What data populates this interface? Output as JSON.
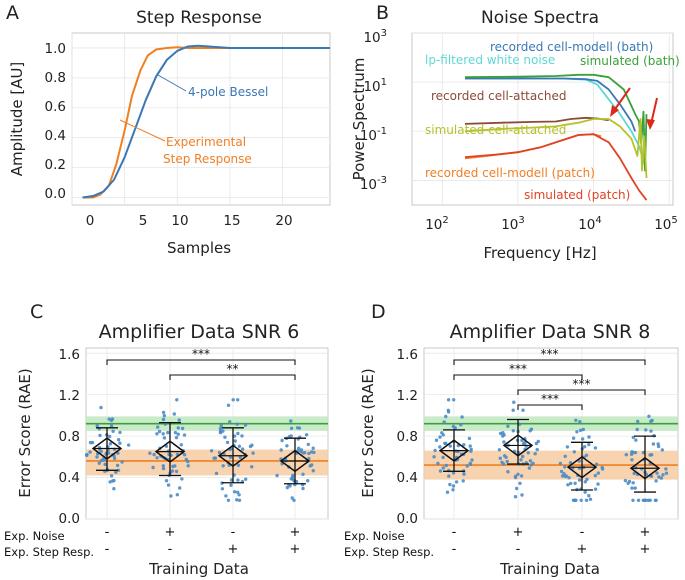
{
  "figure": {
    "colors": {
      "blue": "#3a78b5",
      "orange": "#f07f22",
      "green": "#3aa03a",
      "cyan": "#5fd8d4",
      "olive": "#b6c22a",
      "brown": "#8c4a3a",
      "red": "#e04325",
      "dot": "#4a8cc8",
      "green_band": "#bfe7bf",
      "orange_band": "#f6cba2"
    }
  },
  "chart_data": [
    {
      "panel": "A",
      "type": "line",
      "title": "Step Response",
      "xlabel": "Samples",
      "ylabel": "Amplitude [AU]",
      "xlim": [
        0,
        24.5
      ],
      "ylim": [
        -0.05,
        1.1
      ],
      "xticks": [
        "0",
        "5",
        "10",
        "15",
        "20"
      ],
      "yticks": [
        "0.0",
        "0.2",
        "0.4",
        "0.6",
        "0.8",
        "1.0"
      ],
      "annotations": [
        "4-pole Bessel",
        "Experimental",
        "Step Response"
      ],
      "series": [
        {
          "name": "4-pole Bessel",
          "color": "blue",
          "x": [
            1,
            2,
            3,
            4,
            5,
            6,
            7,
            8,
            9,
            10,
            11,
            12,
            13,
            14,
            15,
            16,
            17,
            18,
            19,
            20,
            21,
            22,
            23,
            24.5
          ],
          "y": [
            0.0,
            0.01,
            0.04,
            0.12,
            0.27,
            0.46,
            0.65,
            0.81,
            0.92,
            0.98,
            1.01,
            1.015,
            1.01,
            1.005,
            1.0,
            1.0,
            1.0,
            1.0,
            1.0,
            1.0,
            1.0,
            1.0,
            1.0,
            1.0
          ]
        },
        {
          "name": "Experimental Step Response",
          "color": "orange",
          "x": [
            1,
            2,
            2.7,
            3.5,
            4.2,
            5,
            5.7,
            6.5,
            7.2,
            8,
            9,
            10,
            11,
            12,
            13,
            15,
            24.5
          ],
          "y": [
            0.0,
            0.0,
            0.02,
            0.08,
            0.22,
            0.45,
            0.68,
            0.85,
            0.95,
            0.99,
            1.0,
            1.005,
            1.0,
            1.0,
            1.0,
            1.0,
            1.0
          ]
        }
      ]
    },
    {
      "panel": "B",
      "type": "line",
      "title": "Noise Spectra",
      "xlabel": "Frequency [Hz]",
      "ylabel": "Power Spectrum",
      "xscale": "log",
      "yscale": "log",
      "xlim_log10": [
        1.6,
        5.05
      ],
      "ylim_log10": [
        -4,
        3
      ],
      "xticks": [
        "10",
        "10",
        "10",
        "10"
      ],
      "xtick_exponents": [
        "2",
        "3",
        "4",
        "5"
      ],
      "yticks": [
        "10",
        "10",
        "10",
        "10"
      ],
      "ytick_exponents": [
        "3",
        "1",
        "-1",
        "-3"
      ],
      "annotations": [
        {
          "text": "lp-filtered white noise",
          "color": "cyan"
        },
        {
          "text": "recorded cell-modell (bath)",
          "color": "blue"
        },
        {
          "text": "simulated (bath)",
          "color": "green"
        },
        {
          "text": "recorded cell-attached",
          "color": "brown"
        },
        {
          "text": "simulated cell-attached",
          "color": "olive"
        },
        {
          "text": "recorded cell-modell (patch)",
          "color": "orange"
        },
        {
          "text": "simulated (patch)",
          "color": "red"
        }
      ],
      "series": [
        {
          "name": "lp-filtered white noise",
          "color": "cyan",
          "x_log10": [
            2.3,
            3.0,
            3.6,
            3.9,
            4.05,
            4.2,
            4.35,
            4.5,
            4.6,
            4.7
          ],
          "y_log10": [
            1.15,
            1.15,
            1.15,
            1.1,
            0.9,
            0.3,
            -0.3,
            -1.0,
            -1.6,
            -2.6
          ]
        },
        {
          "name": "recorded cell-modell (bath)",
          "color": "blue",
          "x_log10": [
            2.3,
            3.0,
            3.6,
            3.9,
            4.05,
            4.2,
            4.35,
            4.5,
            4.55
          ],
          "y_log10": [
            1.15,
            1.15,
            1.15,
            1.12,
            1.05,
            0.7,
            0.1,
            -0.6,
            -1.0
          ]
        },
        {
          "name": "simulated (bath)",
          "color": "green",
          "x_log10": [
            2.3,
            3.0,
            3.5,
            3.8,
            4.0,
            4.2,
            4.4,
            4.55,
            4.6,
            4.63,
            4.66,
            4.68,
            4.7
          ],
          "y_log10": [
            1.2,
            1.22,
            1.25,
            1.3,
            1.3,
            1.2,
            0.7,
            -0.3,
            -0.6,
            -1.5,
            -0.2,
            -2.6,
            -0.3
          ]
        },
        {
          "name": "recorded cell-attached",
          "color": "brown",
          "x_log10": [
            2.3,
            2.8,
            3.2,
            3.5,
            3.7,
            3.9,
            4.05,
            4.2
          ],
          "y_log10": [
            -0.7,
            -0.65,
            -0.62,
            -0.6,
            -0.5,
            -0.45,
            -0.48,
            -0.55
          ]
        },
        {
          "name": "simulated cell-attached",
          "color": "olive",
          "x_log10": [
            2.3,
            2.8,
            3.2,
            3.5,
            3.8,
            4.0,
            4.2,
            4.35,
            4.5,
            4.58,
            4.62,
            4.64,
            4.67,
            4.7
          ],
          "y_log10": [
            -1.0,
            -0.9,
            -0.85,
            -0.8,
            -0.65,
            -0.5,
            -0.5,
            -0.8,
            -1.3,
            -2.0,
            -0.5,
            -2.6,
            -1.2,
            -2.9
          ]
        },
        {
          "name": "recorded cell-modell (patch)",
          "color": "orange",
          "x_log10": [
            2.3,
            2.6,
            3.0,
            3.3,
            3.6,
            3.8,
            4.0,
            4.1
          ],
          "y_log10": [
            -2.1,
            -2.0,
            -1.85,
            -1.65,
            -1.35,
            -1.15,
            -1.12,
            -1.2
          ]
        },
        {
          "name": "simulated (patch)",
          "color": "red",
          "x_log10": [
            2.3,
            2.7,
            3.0,
            3.3,
            3.6,
            3.8,
            4.0,
            4.2,
            4.35,
            4.5,
            4.6,
            4.7
          ],
          "y_log10": [
            -2.05,
            -1.95,
            -1.85,
            -1.65,
            -1.35,
            -1.15,
            -1.12,
            -1.45,
            -2.1,
            -2.9,
            -3.4,
            -3.8
          ]
        }
      ]
    },
    {
      "panel": "C",
      "type": "scatter",
      "title": "Amplifier Data SNR 6",
      "xlabel": "Training Data",
      "ylabel": "Error Score (RAE)",
      "ylim": [
        0.0,
        1.65
      ],
      "yticks": [
        "0.0",
        "0.4",
        "0.8",
        "1.2",
        "1.6"
      ],
      "row_labels": [
        "Exp. Noise",
        "Exp. Step Resp."
      ],
      "conditions": [
        {
          "noise": "-",
          "step": "-",
          "mean": 0.68,
          "ci": 0.1,
          "sd_low": 0.47,
          "sd_high": 0.88
        },
        {
          "noise": "+",
          "step": "-",
          "mean": 0.65,
          "ci": 0.1,
          "sd_low": 0.42,
          "sd_high": 0.93
        },
        {
          "noise": "-",
          "step": "+",
          "mean": 0.61,
          "ci": 0.1,
          "sd_low": 0.35,
          "sd_high": 0.88
        },
        {
          "noise": "+",
          "step": "+",
          "mean": 0.56,
          "ci": 0.1,
          "sd_low": 0.34,
          "sd_high": 0.78
        }
      ],
      "reference_lines": [
        {
          "name": "green",
          "value": 0.92,
          "band": [
            0.85,
            0.99
          ]
        },
        {
          "name": "orange",
          "value": 0.56,
          "band": [
            0.42,
            0.67
          ]
        }
      ],
      "significance": [
        {
          "from": 1,
          "to": 4,
          "label": "***"
        },
        {
          "from": 2,
          "to": 4,
          "label": "**"
        }
      ]
    },
    {
      "panel": "D",
      "type": "scatter",
      "title": "Amplifier Data SNR 8",
      "xlabel": "Training Data",
      "ylabel": "Error Score (RAE)",
      "ylim": [
        0.0,
        1.65
      ],
      "yticks": [
        "0.0",
        "0.4",
        "0.8",
        "1.2",
        "1.6"
      ],
      "row_labels": [
        "Exp. Noise",
        "Exp. Step Resp."
      ],
      "conditions": [
        {
          "noise": "-",
          "step": "-",
          "mean": 0.66,
          "ci": 0.1,
          "sd_low": 0.46,
          "sd_high": 0.86
        },
        {
          "noise": "+",
          "step": "-",
          "mean": 0.71,
          "ci": 0.1,
          "sd_low": 0.53,
          "sd_high": 0.96
        },
        {
          "noise": "-",
          "step": "+",
          "mean": 0.5,
          "ci": 0.1,
          "sd_low": 0.28,
          "sd_high": 0.74
        },
        {
          "noise": "+",
          "step": "+",
          "mean": 0.49,
          "ci": 0.1,
          "sd_low": 0.26,
          "sd_high": 0.8
        }
      ],
      "reference_lines": [
        {
          "name": "green",
          "value": 0.92,
          "band": [
            0.85,
            0.99
          ]
        },
        {
          "name": "orange",
          "value": 0.52,
          "band": [
            0.38,
            0.66
          ]
        }
      ],
      "significance": [
        {
          "from": 1,
          "to": 4,
          "label": "***"
        },
        {
          "from": 1,
          "to": 3,
          "label": "***"
        },
        {
          "from": 2,
          "to": 4,
          "label": "***"
        },
        {
          "from": 2,
          "to": 3,
          "label": "***"
        }
      ]
    }
  ]
}
